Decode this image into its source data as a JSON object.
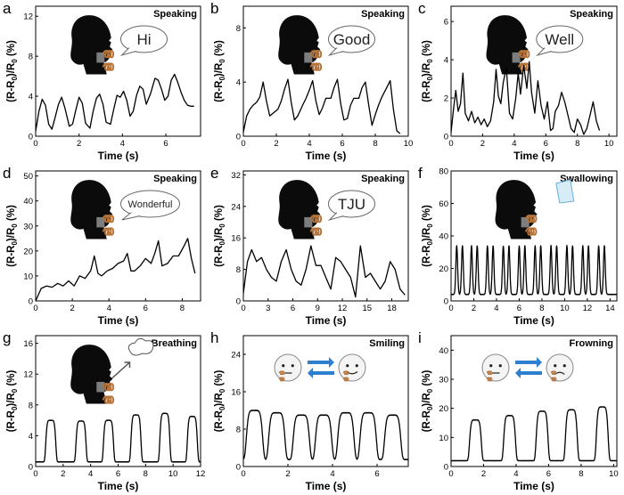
{
  "figure": {
    "xlabel": "Time (s)",
    "ylabel_prefix": "(R-R",
    "ylabel_sub0": "0",
    "ylabel_mid": ")/R",
    "ylabel_suffix": " (%)"
  },
  "chart_data": [
    {
      "type": "line",
      "letter": "a",
      "title": "Speaking",
      "bubble": "Hi",
      "xlabel": "Time (s)",
      "ylabel": "(R-R0)/R0 (%)",
      "xlim": [
        0,
        7.6
      ],
      "ylim": [
        0,
        13
      ],
      "xticks": [
        0,
        2,
        4,
        6
      ],
      "yticks": [
        0,
        4,
        8,
        12
      ],
      "series": [
        {
          "name": "Hi",
          "x": [
            0,
            0.15,
            0.3,
            0.45,
            0.6,
            0.75,
            0.9,
            1.05,
            1.2,
            1.35,
            1.55,
            1.7,
            1.85,
            2.0,
            2.15,
            2.3,
            2.5,
            2.65,
            2.8,
            2.95,
            3.1,
            3.25,
            3.45,
            3.6,
            3.75,
            3.9,
            4.05,
            4.2,
            4.35,
            4.5,
            4.65,
            4.8,
            4.95,
            5.1,
            5.3,
            5.5,
            5.65,
            5.8,
            5.95,
            6.1,
            6.25,
            6.4,
            6.55,
            6.7,
            6.85,
            7.0,
            7.15,
            7.3
          ],
          "y": [
            0.5,
            2.5,
            3.7,
            3.1,
            1.2,
            0.7,
            1.9,
            3.2,
            3.9,
            2.8,
            1.0,
            1.2,
            2.6,
            3.9,
            3.3,
            1.3,
            0.8,
            2.5,
            3.8,
            4.2,
            3.2,
            1.4,
            1.2,
            2.7,
            4.1,
            3.9,
            4.5,
            3.6,
            2.0,
            2.5,
            4.1,
            5.0,
            4.7,
            3.2,
            4.3,
            5.8,
            5.6,
            4.7,
            3.6,
            4.0,
            5.6,
            6.2,
            5.4,
            4.4,
            3.6,
            3.1,
            3.0,
            3.0
          ]
        }
      ]
    },
    {
      "type": "line",
      "letter": "b",
      "title": "Speaking",
      "bubble": "Good",
      "xlabel": "Time (s)",
      "ylabel": "(R-R0)/R0 (%)",
      "xlim": [
        0,
        10
      ],
      "ylim": [
        0,
        9.6
      ],
      "xticks": [
        0,
        2,
        4,
        6,
        8,
        10
      ],
      "yticks": [
        0,
        4,
        8
      ],
      "series": [
        {
          "name": "Good",
          "x": [
            0,
            0.2,
            0.4,
            0.6,
            0.8,
            1.0,
            1.2,
            1.4,
            1.6,
            1.9,
            2.1,
            2.3,
            2.5,
            2.7,
            2.9,
            3.1,
            3.3,
            3.6,
            3.8,
            4.0,
            4.2,
            4.4,
            4.6,
            4.8,
            5.0,
            5.3,
            5.5,
            5.7,
            5.9,
            6.1,
            6.3,
            6.5,
            6.7,
            7.0,
            7.2,
            7.4,
            7.6,
            7.8,
            8.0,
            8.2,
            8.4,
            8.7,
            8.9,
            9.1,
            9.3,
            9.5
          ],
          "y": [
            0.3,
            1.5,
            2.0,
            2.3,
            2.5,
            2.9,
            4.0,
            2.6,
            1.5,
            1.8,
            2.0,
            2.6,
            3.5,
            4.2,
            2.5,
            1.2,
            1.5,
            2.3,
            2.8,
            3.4,
            4.1,
            2.6,
            1.6,
            2.1,
            2.8,
            2.8,
            3.6,
            4.2,
            2.4,
            1.2,
            1.3,
            2.3,
            2.8,
            2.8,
            3.6,
            4.0,
            2.3,
            0.8,
            1.6,
            2.3,
            2.9,
            3.6,
            4.1,
            2.0,
            0.4,
            0.2
          ]
        }
      ]
    },
    {
      "type": "line",
      "letter": "c",
      "title": "Speaking",
      "bubble": "Well",
      "xlabel": "Time (s)",
      "ylabel": "(R-R0)/R0 (%)",
      "xlim": [
        0,
        10.5
      ],
      "ylim": [
        0,
        6.8
      ],
      "xticks": [
        0,
        2,
        4,
        6,
        8,
        10
      ],
      "yticks": [
        0,
        2,
        4,
        6
      ],
      "series": [
        {
          "name": "Well",
          "x": [
            0,
            0.15,
            0.3,
            0.45,
            0.6,
            0.75,
            0.9,
            1.1,
            1.3,
            1.5,
            1.7,
            1.9,
            2.1,
            2.3,
            2.5,
            2.7,
            2.85,
            3.0,
            3.15,
            3.3,
            3.5,
            3.7,
            3.9,
            4.1,
            4.25,
            4.4,
            4.6,
            4.8,
            4.95,
            5.1,
            5.3,
            5.5,
            5.7,
            5.9,
            6.1,
            6.3,
            6.45,
            6.6,
            6.8,
            7.0,
            7.2,
            7.4,
            7.6,
            7.8,
            8.0,
            8.2,
            8.4,
            8.6,
            8.8,
            9.0,
            9.2,
            9.4
          ],
          "y": [
            0.2,
            1.4,
            2.4,
            1.3,
            1.7,
            3.3,
            1.2,
            0.8,
            1.3,
            0.7,
            1.0,
            0.6,
            0.9,
            0.5,
            0.8,
            1.8,
            3.5,
            2.1,
            1.7,
            2.8,
            3.6,
            1.2,
            0.9,
            2.0,
            3.3,
            2.2,
            3.7,
            2.5,
            3.9,
            2.3,
            1.2,
            2.9,
            1.6,
            0.9,
            1.8,
            0.3,
            0.4,
            1.3,
            1.6,
            2.3,
            1.8,
            1.1,
            0.4,
            0.2,
            0.9,
            0.6,
            0.1,
            0.4,
            1.1,
            1.8,
            0.8,
            0.3
          ]
        }
      ]
    },
    {
      "type": "line",
      "letter": "d",
      "title": "Speaking",
      "bubble": "Wonderful",
      "xlabel": "Time (s)",
      "ylabel": "(R-R0)/R0 (%)",
      "xlim": [
        0,
        9
      ],
      "ylim": [
        0,
        52
      ],
      "xticks": [
        0,
        2,
        4,
        6,
        8
      ],
      "yticks": [
        0,
        10,
        20,
        30,
        40,
        50
      ],
      "series": [
        {
          "name": "Wonderful",
          "x": [
            0,
            0.3,
            0.6,
            0.9,
            1.2,
            1.5,
            1.8,
            2.1,
            2.4,
            2.7,
            3.0,
            3.2,
            3.4,
            3.6,
            3.9,
            4.2,
            4.5,
            4.8,
            5.0,
            5.2,
            5.4,
            5.7,
            6.0,
            6.3,
            6.5,
            6.7,
            6.9,
            7.2,
            7.5,
            7.8,
            8.1,
            8.3,
            8.5,
            8.7
          ],
          "y": [
            0,
            5,
            6,
            5.5,
            7,
            6,
            8,
            6,
            10,
            9,
            12,
            18,
            11,
            10,
            12,
            13,
            15,
            16,
            19,
            12,
            12,
            14,
            17,
            15,
            19,
            24,
            14,
            15,
            18,
            18,
            22,
            25,
            17,
            11
          ]
        }
      ]
    },
    {
      "type": "line",
      "letter": "e",
      "title": "Speaking",
      "bubble": "TJU",
      "xlabel": "Time (s)",
      "ylabel": "(R-R0)/R0 (%)",
      "xlim": [
        0,
        20
      ],
      "ylim": [
        0,
        33
      ],
      "xticks": [
        0,
        3,
        6,
        9,
        12,
        15,
        18
      ],
      "yticks": [
        0,
        8,
        16,
        24,
        32
      ],
      "series": [
        {
          "name": "TJU",
          "x": [
            0,
            0.5,
            1,
            1.6,
            2.2,
            2.8,
            3.4,
            4,
            4.6,
            5.2,
            5.8,
            6.4,
            7,
            7.6,
            8.2,
            8.8,
            9.4,
            10,
            10.6,
            11.2,
            11.8,
            12.4,
            13,
            13.6,
            14.2,
            14.8,
            15.4,
            16,
            16.6,
            17.2,
            17.8,
            18.4,
            19,
            19.6
          ],
          "y": [
            2,
            10,
            13,
            10,
            11,
            8,
            6,
            5,
            10,
            13,
            8,
            5,
            4,
            8,
            14,
            9,
            9,
            6,
            3,
            11,
            10,
            8,
            6,
            1,
            14,
            6,
            7,
            5,
            3,
            5,
            10,
            8,
            3,
            1.5
          ]
        }
      ]
    },
    {
      "type": "line",
      "letter": "f",
      "title": "Swallowing",
      "bubble": "",
      "xlabel": "Time (s)",
      "ylabel": "(R-R0)/R0 (%)",
      "xlim": [
        0,
        14.6
      ],
      "ylim": [
        0,
        80
      ],
      "xticks": [
        0,
        2,
        4,
        6,
        8,
        10,
        12,
        14
      ],
      "yticks": [
        0,
        20,
        40,
        60,
        80
      ],
      "series": [
        {
          "name": "Swallowing",
          "peaks_x": [
            0.5,
            1.0,
            1.8,
            2.3,
            3.2,
            3.7,
            4.6,
            5.1,
            6.0,
            6.5,
            7.4,
            7.9,
            8.8,
            9.3,
            10.2,
            10.7,
            11.6,
            12.1,
            13.0,
            13.5
          ],
          "peak_y": 34,
          "baseline_y": 4
        }
      ]
    },
    {
      "type": "line",
      "letter": "g",
      "title": "Breathing",
      "bubble": "",
      "xlabel": "Time (s)",
      "ylabel": "(R-R0)/R0 (%)",
      "xlim": [
        0,
        12
      ],
      "ylim": [
        0,
        17
      ],
      "xticks": [
        0,
        2,
        4,
        6,
        8,
        10,
        12
      ],
      "yticks": [
        0,
        4,
        8,
        12,
        16
      ],
      "series": [
        {
          "name": "Breathing",
          "peaks_x": [
            1.1,
            3.3,
            5.3,
            7.3,
            9.4,
            11.4
          ],
          "peak_y": [
            6.0,
            5.9,
            6.0,
            6.7,
            6.9,
            6.5
          ],
          "baseline_y": 0.6
        }
      ]
    },
    {
      "type": "line",
      "letter": "h",
      "title": "Smiling",
      "bubble": "",
      "xlabel": "Time (s)",
      "ylabel": "(R-R0)/R0 (%)",
      "xlim": [
        0,
        7.4
      ],
      "ylim": [
        0,
        28
      ],
      "xticks": [
        0,
        2,
        4,
        6
      ],
      "yticks": [
        0,
        8,
        16,
        24
      ],
      "series": [
        {
          "name": "Smiling",
          "peaks_x": [
            0.5,
            1.5,
            2.6,
            3.6,
            4.6,
            5.6,
            6.7
          ],
          "peak_y": [
            12,
            11.5,
            11,
            11,
            11.5,
            11.5,
            11
          ],
          "baseline_y": 1.5
        }
      ]
    },
    {
      "type": "line",
      "letter": "i",
      "title": "Frowning",
      "bubble": "",
      "xlabel": "Time (s)",
      "ylabel": "(R-R0)/R0 (%)",
      "xlim": [
        0,
        10.2
      ],
      "ylim": [
        0,
        45
      ],
      "xticks": [
        0,
        2,
        4,
        6,
        8,
        10
      ],
      "yticks": [
        0,
        10,
        20,
        30,
        40
      ],
      "series": [
        {
          "name": "Frowning",
          "peaks_x": [
            1.5,
            3.6,
            5.6,
            7.4,
            9.3
          ],
          "peak_y": [
            16,
            17.5,
            19,
            19.5,
            20.5
          ],
          "baseline_y": 2
        }
      ]
    }
  ],
  "colors": {
    "line": "#000000",
    "silhouette": "#0b0b0b",
    "sensor": "#b5733a",
    "arrow": "#2f7fd0",
    "face": "#cfcfcf"
  }
}
